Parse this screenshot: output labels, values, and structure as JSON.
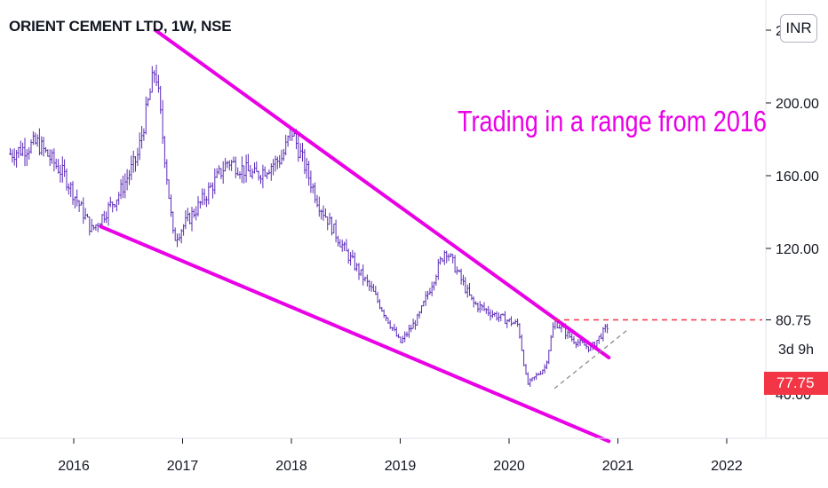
{
  "header": {
    "title": "ORIENT CEMENT LTD, 1W, NSE",
    "currency_button": "INR"
  },
  "annotation_text": "Trading in a range from 2016",
  "countdown": "3d 9h",
  "last_price_label": "77.75",
  "colors": {
    "candles": "#5b2bb7",
    "trendlines": "#e900e6",
    "last_price": "#f23645",
    "support_dashed": "#8d8d8d"
  },
  "chart_data": {
    "type": "line",
    "timeframe": "1W",
    "x": [
      "2015-06",
      "2015-09",
      "2015-12",
      "2016-03",
      "2016-06",
      "2016-08",
      "2016-10",
      "2016-12",
      "2017-03",
      "2017-06",
      "2017-09",
      "2017-12",
      "2018-01",
      "2018-04",
      "2018-07",
      "2018-10",
      "2019-01",
      "2019-03",
      "2019-06",
      "2019-09",
      "2019-12",
      "2020-02",
      "2020-03",
      "2020-05",
      "2020-06",
      "2020-08",
      "2020-10",
      "2020-12"
    ],
    "series": [
      {
        "values": [
          172,
          178,
          160,
          130,
          150,
          170,
          220,
          125,
          145,
          168,
          160,
          170,
          185,
          145,
          118,
          96,
          68,
          82,
          120,
          90,
          82,
          78,
          45,
          55,
          80,
          70,
          65,
          78
        ]
      }
    ],
    "x_ticks": [
      "2016",
      "2017",
      "2018",
      "2019",
      "2020",
      "2021",
      "2022"
    ],
    "y_ticks": [
      "120.00",
      "160.00",
      "200.00"
    ],
    "y_top_label": "240",
    "y_bottom_label": "40.00",
    "ylim": [
      8,
      250
    ],
    "horizontal_level": {
      "value": 80.75,
      "label": "80.75"
    },
    "last_price": 77.75,
    "trendlines": [
      {
        "name": "resistance",
        "from": [
          "2016-10",
          240
        ],
        "to": [
          "2020-12",
          60
        ]
      },
      {
        "name": "support",
        "from": [
          "2016-04",
          132
        ],
        "to": [
          "2020-12",
          14
        ]
      }
    ],
    "dashed_support": {
      "from": [
        "2020-06",
        43
      ],
      "to": [
        "2021-02",
        75
      ]
    },
    "grid": false
  }
}
